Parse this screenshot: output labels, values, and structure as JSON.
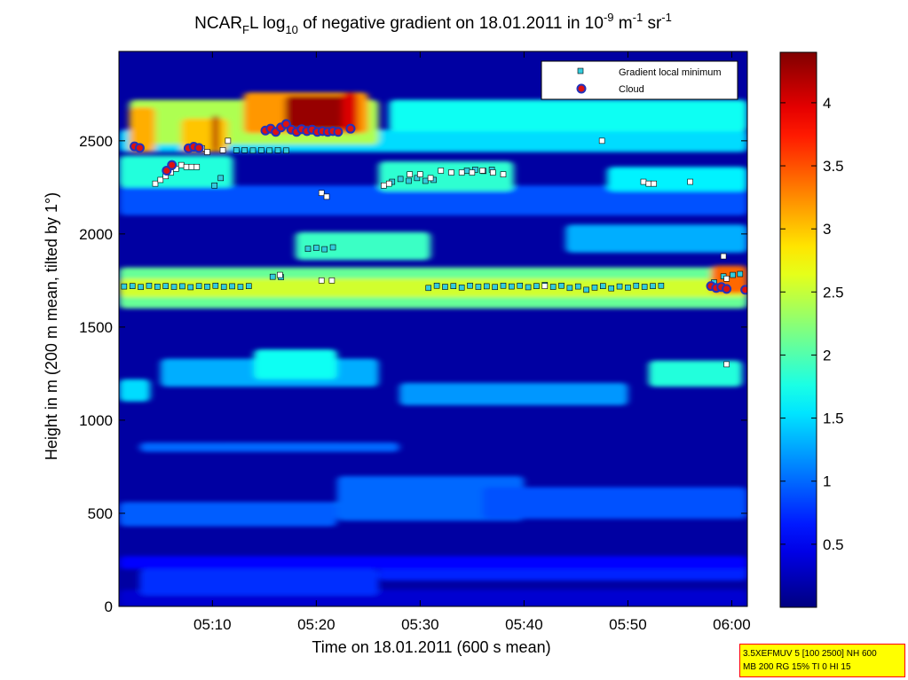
{
  "chart_data": {
    "type": "heatmap",
    "title": {
      "main": "NCAR",
      "main_sub": "F",
      "after_sub": "L log",
      "log_sub": "10",
      "mid": " of negative gradient on 18.01.2011 in 10",
      "exp1": "-9",
      "unit1": " m",
      "exp2": "-1",
      "unit2": " sr",
      "exp3": "-1"
    },
    "xlabel": "Time on 18.01.2011 (600 s mean)",
    "ylabel": "Height in m (200 m mean, tilted by 1°)",
    "x_range_minutes": [
      1.0,
      61.5
    ],
    "ylim": [
      0,
      2980
    ],
    "x_ticks": [
      {
        "label": "05:10",
        "value": 10
      },
      {
        "label": "05:20",
        "value": 20
      },
      {
        "label": "05:30",
        "value": 30
      },
      {
        "label": "05:40",
        "value": 40
      },
      {
        "label": "05:50",
        "value": 50
      },
      {
        "label": "06:00",
        "value": 60
      }
    ],
    "y_ticks": [
      {
        "label": "0",
        "value": 0
      },
      {
        "label": "500",
        "value": 500
      },
      {
        "label": "1000",
        "value": 1000
      },
      {
        "label": "1500",
        "value": 1500
      },
      {
        "label": "2000",
        "value": 2000
      },
      {
        "label": "2500",
        "value": 2500
      }
    ],
    "colorbar": {
      "colormap": "jet",
      "range": [
        0,
        4.4
      ],
      "ticks": [
        {
          "label": "0.5",
          "value": 0.5
        },
        {
          "label": "1",
          "value": 1
        },
        {
          "label": "1.5",
          "value": 1.5
        },
        {
          "label": "2",
          "value": 2
        },
        {
          "label": "2.5",
          "value": 2.5
        },
        {
          "label": "3",
          "value": 3
        },
        {
          "label": "3.5",
          "value": 3.5
        },
        {
          "label": "4",
          "value": 4
        }
      ]
    },
    "background_value": 0.15,
    "field_bands": [
      {
        "t0": 1,
        "t1": 61.5,
        "h0": 0,
        "h1": 90,
        "v": 0.35
      },
      {
        "t0": 1,
        "t1": 61.5,
        "h0": 480,
        "h1": 560,
        "v": 1.15
      },
      {
        "t0": 1,
        "t1": 22,
        "h0": 430,
        "h1": 560,
        "v": 0.95
      },
      {
        "t0": 22,
        "t1": 40,
        "h0": 460,
        "h1": 700,
        "v": 1.0
      },
      {
        "t0": 36,
        "t1": 61.5,
        "h0": 470,
        "h1": 640,
        "v": 0.9
      },
      {
        "t0": 3,
        "t1": 26,
        "h0": 60,
        "h1": 200,
        "v": 0.75
      },
      {
        "t0": 26,
        "t1": 61.5,
        "h0": 140,
        "h1": 230,
        "v": 0.7
      },
      {
        "t0": 1,
        "t1": 61.5,
        "h0": 200,
        "h1": 270,
        "v": 0.55
      },
      {
        "t0": 1,
        "t1": 4,
        "h0": 1100,
        "h1": 1220,
        "v": 1.5
      },
      {
        "t0": 5,
        "t1": 26,
        "h0": 1180,
        "h1": 1330,
        "v": 1.3
      },
      {
        "t0": 14,
        "t1": 22,
        "h0": 1220,
        "h1": 1380,
        "v": 1.7
      },
      {
        "t0": 28,
        "t1": 50,
        "h0": 1080,
        "h1": 1200,
        "v": 1.2
      },
      {
        "t0": 52,
        "t1": 61,
        "h0": 1180,
        "h1": 1320,
        "v": 1.8
      },
      {
        "t0": 3,
        "t1": 28,
        "h0": 830,
        "h1": 880,
        "v": 1.0
      },
      {
        "t0": 1,
        "t1": 61.5,
        "h0": 1600,
        "h1": 1820,
        "v": 2.1
      },
      {
        "t0": 1,
        "t1": 61.5,
        "h0": 1660,
        "h1": 1760,
        "v": 2.55
      },
      {
        "t0": 58,
        "t1": 61.5,
        "h0": 1680,
        "h1": 1830,
        "v": 3.4
      },
      {
        "t0": 18,
        "t1": 31,
        "h0": 1860,
        "h1": 2010,
        "v": 1.9
      },
      {
        "t0": 44,
        "t1": 61.5,
        "h0": 1900,
        "h1": 2050,
        "v": 1.3
      },
      {
        "t0": 1,
        "t1": 61.5,
        "h0": 2100,
        "h1": 2260,
        "v": 0.9
      },
      {
        "t0": 26,
        "t1": 39,
        "h0": 2230,
        "h1": 2390,
        "v": 1.85
      },
      {
        "t0": 48,
        "t1": 61.5,
        "h0": 2230,
        "h1": 2360,
        "v": 1.6
      },
      {
        "t0": 1,
        "t1": 12,
        "h0": 2250,
        "h1": 2420,
        "v": 1.8
      },
      {
        "t0": 1,
        "t1": 61.5,
        "h0": 2440,
        "h1": 2560,
        "v": 1.5
      },
      {
        "t0": 2,
        "t1": 26,
        "h0": 2480,
        "h1": 2720,
        "v": 2.4
      },
      {
        "t0": 27,
        "t1": 61.5,
        "h0": 2550,
        "h1": 2720,
        "v": 1.7
      },
      {
        "t0": 2,
        "t1": 4.5,
        "h0": 2440,
        "h1": 2680,
        "v": 3.1
      },
      {
        "t0": 7,
        "t1": 11.5,
        "h0": 2440,
        "h1": 2620,
        "v": 3.0
      },
      {
        "t0": 13,
        "t1": 25,
        "h0": 2540,
        "h1": 2760,
        "v": 3.2
      },
      {
        "t0": 17,
        "t1": 23,
        "h0": 2560,
        "h1": 2740,
        "v": 4.3
      },
      {
        "t0": 22.5,
        "t1": 24,
        "h0": 2540,
        "h1": 2760,
        "v": 4.0
      },
      {
        "t0": 10,
        "t1": 10.6,
        "h0": 2440,
        "h1": 2640,
        "v": 4.2
      }
    ],
    "gradient_minimum_series": {
      "name": "Gradient local minimum",
      "marker": "square",
      "color": "#33ccdd",
      "points": [
        [
          1.5,
          1718
        ],
        [
          2.3,
          1720
        ],
        [
          3.1,
          1715
        ],
        [
          3.9,
          1722
        ],
        [
          4.7,
          1717
        ],
        [
          5.5,
          1720
        ],
        [
          6.3,
          1716
        ],
        [
          7.1,
          1719
        ],
        [
          7.9,
          1714
        ],
        [
          8.7,
          1720
        ],
        [
          9.5,
          1717
        ],
        [
          10.3,
          1722
        ],
        [
          11.1,
          1716
        ],
        [
          11.9,
          1719
        ],
        [
          12.7,
          1716
        ],
        [
          13.5,
          1720
        ],
        [
          15.8,
          1770
        ],
        [
          16.6,
          1768
        ],
        [
          30.8,
          1710
        ],
        [
          31.6,
          1722
        ],
        [
          32.4,
          1716
        ],
        [
          33.2,
          1720
        ],
        [
          34,
          1712
        ],
        [
          34.8,
          1722
        ],
        [
          35.6,
          1716
        ],
        [
          36.4,
          1719
        ],
        [
          37.2,
          1715
        ],
        [
          38,
          1722
        ],
        [
          38.8,
          1718
        ],
        [
          39.6,
          1722
        ],
        [
          40.4,
          1714
        ],
        [
          41.2,
          1720
        ],
        [
          42,
          1726
        ],
        [
          42.8,
          1716
        ],
        [
          43.6,
          1722
        ],
        [
          44.4,
          1710
        ],
        [
          45.2,
          1718
        ],
        [
          46,
          1700
        ],
        [
          46.8,
          1712
        ],
        [
          47.6,
          1720
        ],
        [
          48.4,
          1708
        ],
        [
          49.2,
          1718
        ],
        [
          50,
          1712
        ],
        [
          50.8,
          1722
        ],
        [
          51.6,
          1716
        ],
        [
          52.4,
          1720
        ],
        [
          53.2,
          1722
        ],
        [
          58.3,
          1740
        ],
        [
          59.2,
          1772
        ],
        [
          60.1,
          1780
        ],
        [
          60.8,
          1785
        ],
        [
          19.2,
          1920
        ],
        [
          20,
          1925
        ],
        [
          20.8,
          1918
        ],
        [
          21.6,
          1928
        ],
        [
          27.3,
          2280
        ],
        [
          28.1,
          2295
        ],
        [
          28.9,
          2285
        ],
        [
          29.7,
          2300
        ],
        [
          30.5,
          2285
        ],
        [
          31.3,
          2290
        ],
        [
          34.5,
          2340
        ],
        [
          35.3,
          2345
        ],
        [
          36.1,
          2338
        ],
        [
          36.9,
          2345
        ],
        [
          12.3,
          2450
        ],
        [
          13.1,
          2450
        ],
        [
          13.9,
          2448
        ],
        [
          14.7,
          2450
        ],
        [
          15.5,
          2448
        ],
        [
          16.3,
          2450
        ],
        [
          17.1,
          2448
        ],
        [
          10.2,
          2260
        ],
        [
          10.8,
          2300
        ]
      ]
    },
    "gradient_minimum_series_white": {
      "name": "Gradient local minimum",
      "marker": "square",
      "color": "#ffffff",
      "points": [
        [
          4.5,
          2270
        ],
        [
          5,
          2290
        ],
        [
          5.5,
          2310
        ],
        [
          6,
          2330
        ],
        [
          6.5,
          2350
        ],
        [
          7,
          2370
        ],
        [
          7.5,
          2360
        ],
        [
          8,
          2360
        ],
        [
          8.5,
          2360
        ],
        [
          9,
          2460
        ],
        [
          9.5,
          2440
        ],
        [
          11,
          2450
        ],
        [
          11.5,
          2500
        ],
        [
          16.5,
          1780
        ],
        [
          20.5,
          2220
        ],
        [
          21,
          2200
        ],
        [
          26.5,
          2260
        ],
        [
          27,
          2270
        ],
        [
          29,
          2320
        ],
        [
          30,
          2320
        ],
        [
          31,
          2300
        ],
        [
          32,
          2340
        ],
        [
          33,
          2330
        ],
        [
          34,
          2330
        ],
        [
          35,
          2330
        ],
        [
          36,
          2340
        ],
        [
          37,
          2330
        ],
        [
          38,
          2320
        ],
        [
          47.5,
          2500
        ],
        [
          51.5,
          2280
        ],
        [
          52,
          2270
        ],
        [
          52.5,
          2270
        ],
        [
          56,
          2280
        ],
        [
          59.2,
          1880
        ],
        [
          59.5,
          1760
        ],
        [
          59.5,
          1300
        ],
        [
          21.5,
          1750
        ],
        [
          20.5,
          1750
        ],
        [
          42,
          1720
        ]
      ]
    },
    "cloud_series": {
      "name": "Cloud",
      "marker": "circle",
      "color": "#dd1111",
      "edge": "#2233bb",
      "points": [
        [
          2.5,
          2470
        ],
        [
          3.0,
          2462
        ],
        [
          7.7,
          2460
        ],
        [
          8.2,
          2468
        ],
        [
          8.7,
          2462
        ],
        [
          15.1,
          2555
        ],
        [
          15.6,
          2565
        ],
        [
          16.1,
          2548
        ],
        [
          16.6,
          2572
        ],
        [
          17.1,
          2590
        ],
        [
          17.6,
          2560
        ],
        [
          18.1,
          2548
        ],
        [
          18.6,
          2562
        ],
        [
          19.1,
          2552
        ],
        [
          19.6,
          2560
        ],
        [
          20.1,
          2548
        ],
        [
          20.6,
          2552
        ],
        [
          21.1,
          2548
        ],
        [
          21.6,
          2552
        ],
        [
          22.1,
          2548
        ],
        [
          23.3,
          2565
        ],
        [
          58.0,
          1720
        ],
        [
          58.5,
          1710
        ],
        [
          59.0,
          1715
        ],
        [
          59.5,
          1705
        ],
        [
          61.3,
          1700
        ],
        [
          5.6,
          2340
        ],
        [
          6.1,
          2370
        ]
      ]
    },
    "legend": {
      "placement": "top-right",
      "entries": [
        "Gradient local minimum",
        "Cloud"
      ]
    },
    "params_box": {
      "line1": "3.5XEFMUV 5 [100 2500] NH 600",
      "line2": "MB 200 RG 15% TI 0 HI 15"
    }
  }
}
